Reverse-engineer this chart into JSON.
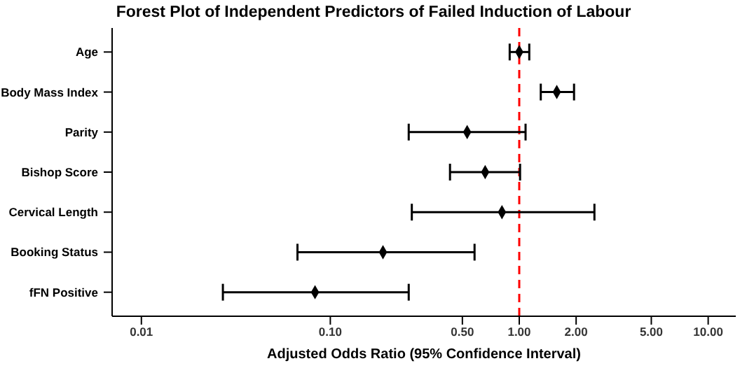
{
  "chart_data": {
    "type": "scatter",
    "orientation": "horizontal",
    "title": "Forest Plot of Independent Predictors of Failed Induction of Labour",
    "xlabel": "Adjusted Odds Ratio (95% Confidence Interval)",
    "categories": [
      "Age",
      "Body Mass Index",
      "Parity",
      "Bishop Score",
      "Cervical Length",
      "Booking Status",
      "fFN Positive"
    ],
    "values": [
      1.0,
      1.58,
      0.53,
      0.66,
      0.81,
      0.19,
      0.083
    ],
    "errors": [
      [
        0.89,
        1.13
      ],
      [
        1.3,
        1.95
      ],
      [
        0.26,
        1.08
      ],
      [
        0.43,
        1.01
      ],
      [
        0.27,
        2.5
      ],
      [
        0.067,
        0.58
      ],
      [
        0.027,
        0.26
      ]
    ],
    "color": "#000000",
    "marker": "diamond",
    "log": "x",
    "grid": false,
    "xlim": [
      0.007,
      14
    ],
    "xticks": [
      {
        "value": 0.01,
        "label": "0.01"
      },
      {
        "value": 0.1,
        "label": "0.10"
      },
      {
        "value": 0.5,
        "label": "0.50"
      },
      {
        "value": 1,
        "label": "1.00"
      },
      {
        "value": 2,
        "label": "2.00"
      },
      {
        "value": 5,
        "label": "5.00"
      },
      {
        "value": 10,
        "label": "10.00"
      }
    ],
    "ref_lines": [
      {
        "axis": "x",
        "value": 1,
        "color": "#ff0000",
        "line_style": "dashed"
      }
    ]
  }
}
